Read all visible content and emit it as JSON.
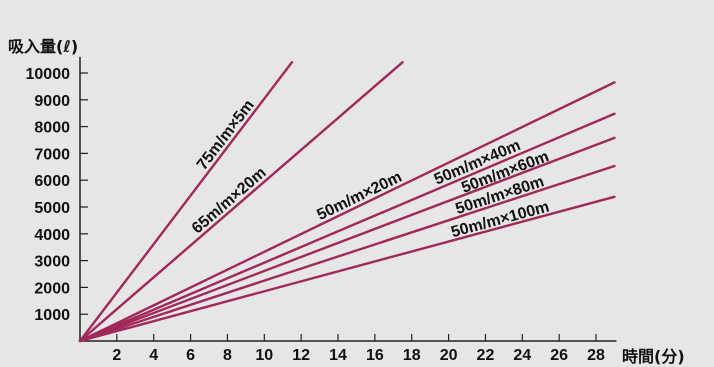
{
  "chart_data": {
    "type": "line",
    "xlabel": "時間(分)",
    "ylabel": "吸入量(ℓ)",
    "xlim": [
      0,
      29
    ],
    "ylim": [
      0,
      10600
    ],
    "x_ticks": [
      "2",
      "4",
      "6",
      "8",
      "10",
      "12",
      "14",
      "16",
      "18",
      "20",
      "22",
      "24",
      "26",
      "28"
    ],
    "y_ticks": [
      "1000",
      "2000",
      "3000",
      "4000",
      "5000",
      "6000",
      "7000",
      "8000",
      "9000",
      "10000"
    ],
    "grid": false,
    "line_color": "#a3285a",
    "series": [
      {
        "name": "75m/m×5m",
        "x": [
          0,
          11.5
        ],
        "y": [
          0,
          10400
        ]
      },
      {
        "name": "65m/m×20m",
        "x": [
          0,
          17.5
        ],
        "y": [
          0,
          10400
        ]
      },
      {
        "name": "50m/m×20m",
        "x": [
          0,
          29
        ],
        "y": [
          0,
          9650
        ]
      },
      {
        "name": "50m/m×40m",
        "x": [
          0,
          29
        ],
        "y": [
          0,
          8480
        ]
      },
      {
        "name": "50m/m×60m",
        "x": [
          0,
          29
        ],
        "y": [
          0,
          7580
        ]
      },
      {
        "name": "50m/m×80m",
        "x": [
          0,
          29
        ],
        "y": [
          0,
          6530
        ]
      },
      {
        "name": "50m/m×100m",
        "x": [
          0,
          29
        ],
        "y": [
          0,
          5380
        ]
      }
    ]
  }
}
